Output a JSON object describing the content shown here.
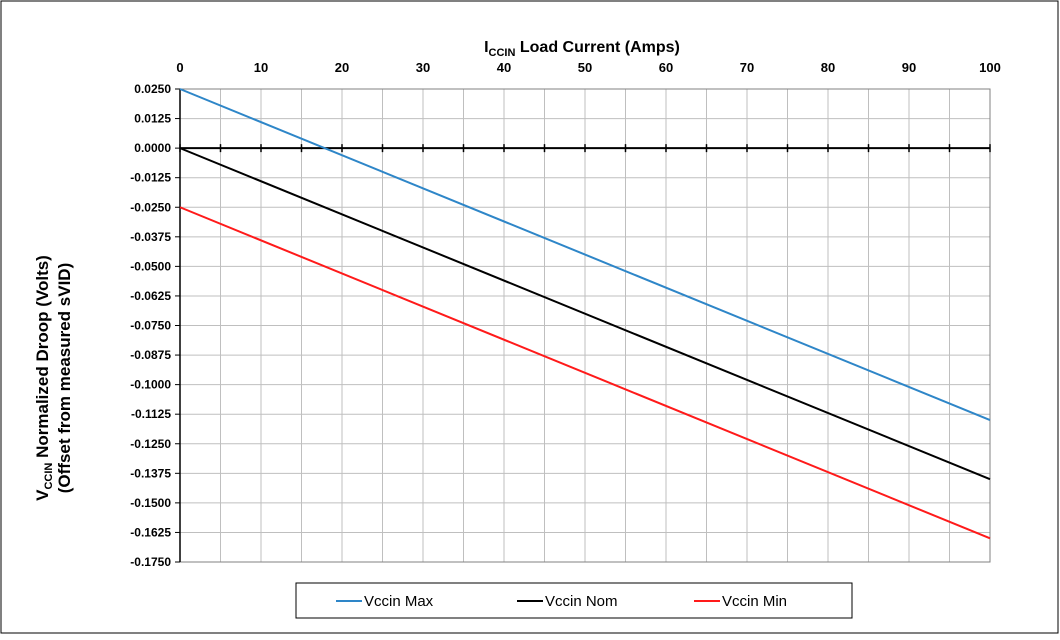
{
  "chart_data": {
    "type": "line",
    "title": {
      "prefix": "I",
      "subscript": "CCIN",
      "suffix": " Load Current (Amps)"
    },
    "ylabel": {
      "line1_prefix": "V",
      "line1_subscript": "CCIN",
      "line1_suffix": " Normalized Droop  (Volts)",
      "line2": "(Offset from measured sVID)"
    },
    "xlim": [
      0,
      100
    ],
    "ylim": [
      -0.175,
      0.025
    ],
    "x_ticks": [
      0,
      10,
      20,
      30,
      40,
      50,
      60,
      70,
      80,
      90,
      100
    ],
    "x_tick_labels": [
      "0",
      "10",
      "20",
      "30",
      "40",
      "50",
      "60",
      "70",
      "80",
      "90",
      "100"
    ],
    "y_ticks": [
      0.025,
      0.0125,
      0,
      -0.0125,
      -0.025,
      -0.0375,
      -0.05,
      -0.0625,
      -0.075,
      -0.0875,
      -0.1,
      -0.1125,
      -0.125,
      -0.1375,
      -0.15,
      -0.1625,
      -0.175
    ],
    "y_tick_labels": [
      "0.0250",
      "0.0125",
      "0.0000",
      "-0.0125",
      "-0.0250",
      "-0.0375",
      "-0.0500",
      "-0.0625",
      "-0.0750",
      "-0.0875",
      "-0.1000",
      "-0.1125",
      "-0.1250",
      "-0.1375",
      "-0.1500",
      "-0.1625",
      "-0.1750"
    ],
    "x_minor_step": 5,
    "grid": true,
    "legend_position": "bottom",
    "x": [
      0,
      100
    ],
    "series": [
      {
        "name": "Vccin Max",
        "color": "#2e86c8",
        "values": [
          0.025,
          -0.115
        ]
      },
      {
        "name": "Vccin Nom",
        "color": "#000000",
        "values": [
          0.0,
          -0.14
        ]
      },
      {
        "name": "Vccin Min",
        "color": "#ff1a1a",
        "values": [
          -0.025,
          -0.165
        ]
      }
    ]
  }
}
